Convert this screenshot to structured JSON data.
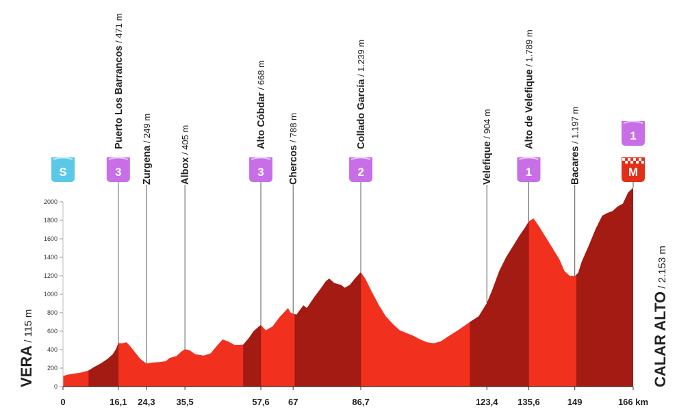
{
  "colors": {
    "fill_bright": "#f2301e",
    "fill_dark": "#a31b12",
    "climb_badge": "#c86ee6",
    "start_badge": "#5bc8e8",
    "finish_badge": "#e0301a",
    "text": "#222222",
    "line": "#555555",
    "grid": "#bbbbbb"
  },
  "chart_data": {
    "type": "area",
    "xlabel": "",
    "ylabel": "",
    "x_unit": "km",
    "xlim": [
      0,
      166
    ],
    "ylim": [
      0,
      2200
    ],
    "y_ticks": [
      0,
      200,
      400,
      600,
      800,
      1000,
      1200,
      1400,
      1600,
      1800,
      2000
    ],
    "x_ticks": [
      {
        "km": 0,
        "label": "0"
      },
      {
        "km": 16.1,
        "label": "16,1"
      },
      {
        "km": 24.3,
        "label": "24,3"
      },
      {
        "km": 35.5,
        "label": "35,5"
      },
      {
        "km": 57.6,
        "label": "57,6"
      },
      {
        "km": 67,
        "label": "67"
      },
      {
        "km": 86.7,
        "label": "86,7"
      },
      {
        "km": 123.4,
        "label": "123,4"
      },
      {
        "km": 135.6,
        "label": "135,6"
      },
      {
        "km": 149,
        "label": "149"
      },
      {
        "km": 166,
        "label": "166 km"
      }
    ],
    "start": {
      "name": "VERA",
      "elevation": "115 m",
      "badge": "S"
    },
    "finish": {
      "name": "CALAR ALTO",
      "elevation": "2.153 m",
      "badge": "M",
      "category": "1"
    },
    "waypoints": [
      {
        "km": 16.1,
        "name": "Puerto Los Barrancos",
        "elevation": "471 m",
        "category": "3"
      },
      {
        "km": 24.3,
        "name": "Zurgena",
        "elevation": "249 m",
        "category": ""
      },
      {
        "km": 35.5,
        "name": "Albox",
        "elevation": "405 m",
        "category": ""
      },
      {
        "km": 57.6,
        "name": "Alto Cóbdar",
        "elevation": "668 m",
        "category": "3"
      },
      {
        "km": 67,
        "name": "Chercos",
        "elevation": "788 m",
        "category": ""
      },
      {
        "km": 86.7,
        "name": "Collado García",
        "elevation": "1.239 m",
        "category": "2"
      },
      {
        "km": 123.4,
        "name": "Velefique",
        "elevation": "904 m",
        "category": ""
      },
      {
        "km": 135.6,
        "name": "Alto de Velefique",
        "elevation": "1.789 m",
        "category": "1"
      },
      {
        "km": 149,
        "name": "Bacares",
        "elevation": "1.197 m",
        "category": ""
      }
    ],
    "climb_segments": [
      [
        7.5,
        16.1
      ],
      [
        52.5,
        57.6
      ],
      [
        67.5,
        86.7
      ],
      [
        118.5,
        135.6
      ],
      [
        149.5,
        166
      ]
    ],
    "profile": [
      [
        0,
        115
      ],
      [
        1.5,
        130
      ],
      [
        3,
        140
      ],
      [
        5,
        150
      ],
      [
        7.5,
        175
      ],
      [
        9,
        210
      ],
      [
        11,
        250
      ],
      [
        13,
        300
      ],
      [
        14.5,
        350
      ],
      [
        15.5,
        410
      ],
      [
        16.1,
        471
      ],
      [
        17.2,
        468
      ],
      [
        18.5,
        480
      ],
      [
        19.5,
        440
      ],
      [
        21,
        370
      ],
      [
        22.5,
        300
      ],
      [
        24.3,
        249
      ],
      [
        26,
        260
      ],
      [
        28,
        265
      ],
      [
        30,
        275
      ],
      [
        31,
        310
      ],
      [
        33,
        330
      ],
      [
        34.5,
        380
      ],
      [
        35.5,
        405
      ],
      [
        37,
        390
      ],
      [
        38.5,
        350
      ],
      [
        41,
        335
      ],
      [
        43,
        360
      ],
      [
        45,
        450
      ],
      [
        46.5,
        510
      ],
      [
        48,
        490
      ],
      [
        50,
        450
      ],
      [
        52.5,
        455
      ],
      [
        54,
        520
      ],
      [
        55.5,
        600
      ],
      [
        57.6,
        668
      ],
      [
        59,
        610
      ],
      [
        61,
        650
      ],
      [
        63,
        750
      ],
      [
        64.5,
        810
      ],
      [
        65.5,
        850
      ],
      [
        66.3,
        800
      ],
      [
        67,
        788
      ],
      [
        68,
        780
      ],
      [
        69,
        830
      ],
      [
        70,
        880
      ],
      [
        71,
        850
      ],
      [
        73,
        960
      ],
      [
        75,
        1060
      ],
      [
        76.5,
        1140
      ],
      [
        77.5,
        1170
      ],
      [
        79,
        1120
      ],
      [
        81,
        1100
      ],
      [
        82,
        1070
      ],
      [
        83.5,
        1100
      ],
      [
        85,
        1170
      ],
      [
        86.7,
        1239
      ],
      [
        88,
        1170
      ],
      [
        90,
        1020
      ],
      [
        92,
        880
      ],
      [
        94,
        760
      ],
      [
        96,
        680
      ],
      [
        98,
        610
      ],
      [
        100,
        580
      ],
      [
        102,
        550
      ],
      [
        104,
        510
      ],
      [
        106,
        480
      ],
      [
        108,
        470
      ],
      [
        110,
        490
      ],
      [
        112,
        540
      ],
      [
        115,
        610
      ],
      [
        118.5,
        700
      ],
      [
        121,
        760
      ],
      [
        123.4,
        904
      ],
      [
        125,
        1050
      ],
      [
        127,
        1250
      ],
      [
        129,
        1400
      ],
      [
        131,
        1520
      ],
      [
        133,
        1640
      ],
      [
        134.5,
        1720
      ],
      [
        135.6,
        1789
      ],
      [
        137,
        1820
      ],
      [
        138.5,
        1740
      ],
      [
        140.5,
        1620
      ],
      [
        142.5,
        1500
      ],
      [
        144.5,
        1380
      ],
      [
        146,
        1250
      ],
      [
        147.5,
        1200
      ],
      [
        149,
        1197
      ],
      [
        150,
        1230
      ],
      [
        151,
        1350
      ],
      [
        153,
        1520
      ],
      [
        155,
        1700
      ],
      [
        157,
        1850
      ],
      [
        158.5,
        1880
      ],
      [
        160,
        1900
      ],
      [
        161.5,
        1950
      ],
      [
        163,
        1980
      ],
      [
        164.5,
        2100
      ],
      [
        166,
        2153
      ]
    ]
  }
}
